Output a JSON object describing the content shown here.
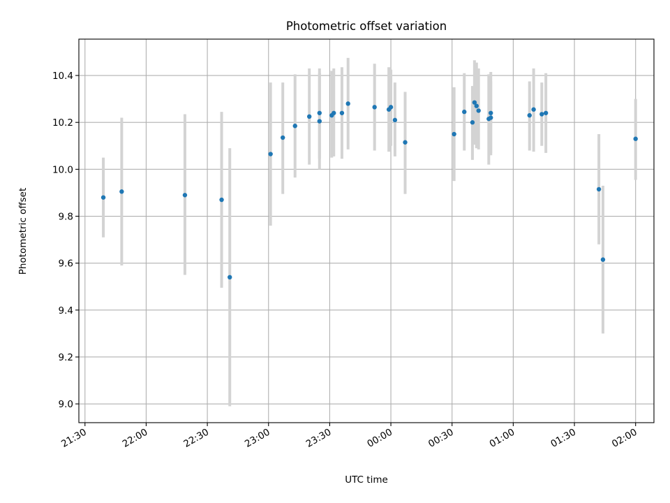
{
  "chart_data": {
    "type": "scatter",
    "title": "Photometric offset variation",
    "xlabel": "UTC time",
    "ylabel": "Photometric offset",
    "grid": true,
    "xlim": [
      "21:27",
      "02:09"
    ],
    "ylim": [
      8.92,
      10.555
    ],
    "x_ticks": [
      "21:30",
      "22:00",
      "22:30",
      "23:00",
      "23:30",
      "00:00",
      "00:30",
      "01:00",
      "01:30",
      "02:00"
    ],
    "y_ticks": [
      "9.0",
      "9.2",
      "9.4",
      "9.6",
      "9.8",
      "10.0",
      "10.2",
      "10.4"
    ],
    "colors": {
      "marker": "#1f77b4",
      "errorbar": "#d3d3d3",
      "grid": "#b0b0b0"
    },
    "points": [
      {
        "x": "21:39",
        "y": 9.88,
        "lo": 9.71,
        "hi": 10.05
      },
      {
        "x": "21:48",
        "y": 9.905,
        "lo": 9.59,
        "hi": 10.22
      },
      {
        "x": "22:19",
        "y": 9.89,
        "lo": 9.55,
        "hi": 10.235
      },
      {
        "x": "22:37",
        "y": 9.87,
        "lo": 9.495,
        "hi": 10.245
      },
      {
        "x": "22:41",
        "y": 9.54,
        "lo": 8.99,
        "hi": 10.09
      },
      {
        "x": "23:01",
        "y": 10.065,
        "lo": 9.76,
        "hi": 10.37
      },
      {
        "x": "23:07",
        "y": 10.135,
        "lo": 9.895,
        "hi": 10.37
      },
      {
        "x": "23:13",
        "y": 10.185,
        "lo": 9.965,
        "hi": 10.405
      },
      {
        "x": "23:20",
        "y": 10.225,
        "lo": 10.02,
        "hi": 10.43
      },
      {
        "x": "23:25",
        "y": 10.24,
        "lo": 10.045,
        "hi": 10.43
      },
      {
        "x": "23:25",
        "y": 10.205,
        "lo": 10.0,
        "hi": 10.41
      },
      {
        "x": "23:31",
        "y": 10.23,
        "lo": 10.05,
        "hi": 10.42
      },
      {
        "x": "23:32",
        "y": 10.24,
        "lo": 10.055,
        "hi": 10.43
      },
      {
        "x": "23:36",
        "y": 10.24,
        "lo": 10.045,
        "hi": 10.435
      },
      {
        "x": "23:39",
        "y": 10.28,
        "lo": 10.085,
        "hi": 10.475
      },
      {
        "x": "23:52",
        "y": 10.265,
        "lo": 10.08,
        "hi": 10.45
      },
      {
        "x": "23:59",
        "y": 10.255,
        "lo": 10.075,
        "hi": 10.435
      },
      {
        "x": "00:00",
        "y": 10.265,
        "lo": 10.1,
        "hi": 10.425
      },
      {
        "x": "00:02",
        "y": 10.21,
        "lo": 10.055,
        "hi": 10.37
      },
      {
        "x": "00:07",
        "y": 10.115,
        "lo": 9.895,
        "hi": 10.33
      },
      {
        "x": "00:31",
        "y": 10.15,
        "lo": 9.95,
        "hi": 10.35
      },
      {
        "x": "00:36",
        "y": 10.245,
        "lo": 10.08,
        "hi": 10.41
      },
      {
        "x": "00:40",
        "y": 10.2,
        "lo": 10.04,
        "hi": 10.355
      },
      {
        "x": "00:41",
        "y": 10.285,
        "lo": 10.105,
        "hi": 10.465
      },
      {
        "x": "00:42",
        "y": 10.27,
        "lo": 10.09,
        "hi": 10.455
      },
      {
        "x": "00:43",
        "y": 10.25,
        "lo": 10.085,
        "hi": 10.43
      },
      {
        "x": "00:48",
        "y": 10.215,
        "lo": 10.02,
        "hi": 10.405
      },
      {
        "x": "00:49",
        "y": 10.24,
        "lo": 10.06,
        "hi": 10.415
      },
      {
        "x": "00:49",
        "y": 10.22,
        "lo": 10.07,
        "hi": 10.375
      },
      {
        "x": "01:08",
        "y": 10.23,
        "lo": 10.08,
        "hi": 10.375
      },
      {
        "x": "01:10",
        "y": 10.255,
        "lo": 10.075,
        "hi": 10.43
      },
      {
        "x": "01:14",
        "y": 10.235,
        "lo": 10.1,
        "hi": 10.37
      },
      {
        "x": "01:16",
        "y": 10.24,
        "lo": 10.07,
        "hi": 10.41
      },
      {
        "x": "01:42",
        "y": 9.915,
        "lo": 9.68,
        "hi": 10.15
      },
      {
        "x": "01:44",
        "y": 9.615,
        "lo": 9.3,
        "hi": 9.93
      },
      {
        "x": "02:00",
        "y": 10.13,
        "lo": 9.955,
        "hi": 10.3
      }
    ]
  }
}
